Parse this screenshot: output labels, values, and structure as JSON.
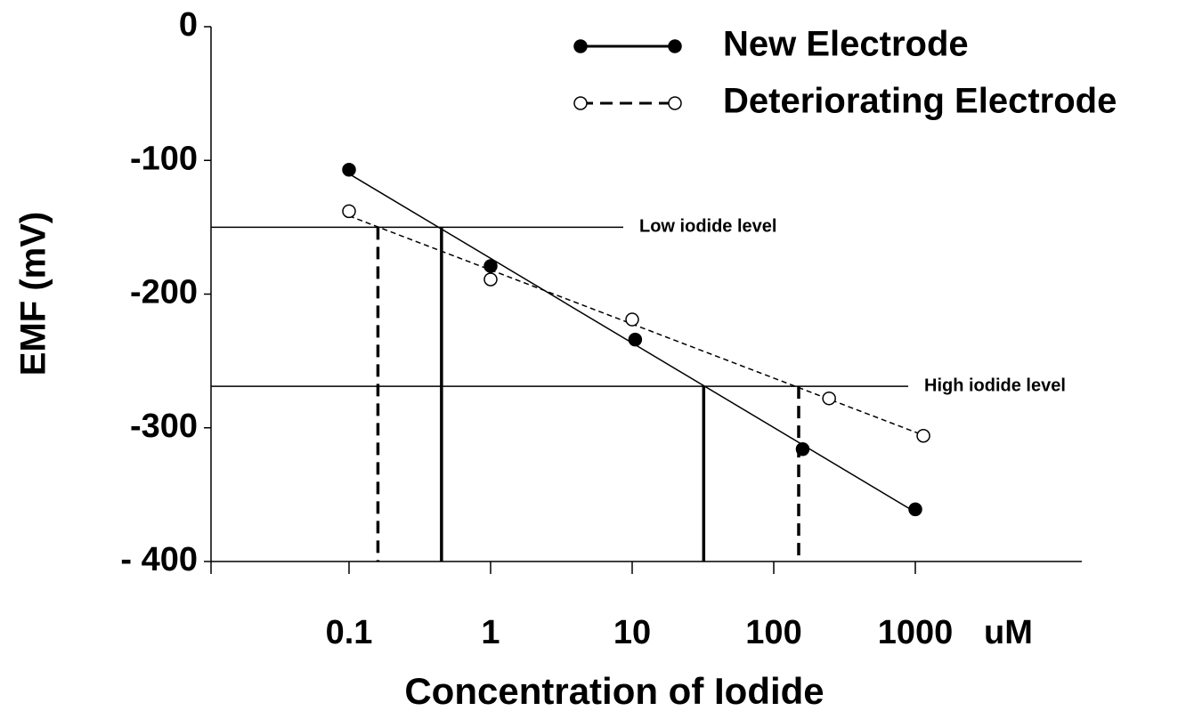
{
  "chart_data": {
    "type": "scatter",
    "xlabel": "Concentration of Iodide",
    "xunit": "uM",
    "ylabel": "EMF (mV)",
    "xscale": "log",
    "xlim": [
      0.01,
      15000
    ],
    "ylim": [
      -400,
      0
    ],
    "xticks": [
      0.1,
      1,
      10,
      100,
      1000
    ],
    "yticks": [
      0,
      -100,
      -200,
      -300,
      {
        "value": -400,
        "label": "- 400"
      }
    ],
    "legend": "upper right",
    "series": [
      {
        "name": "New Electrode",
        "color": "#000000",
        "marker": "filled",
        "line": "solid",
        "x": [
          0.1,
          1,
          10.5,
          160,
          1000
        ],
        "values": [
          -107,
          -179,
          -234,
          -316,
          -361
        ]
      },
      {
        "name": "Deteriorating Electrode",
        "color": "#000000",
        "marker": "open",
        "line": "dashed",
        "x": [
          0.1,
          1,
          10,
          246,
          1140
        ],
        "values": [
          -138,
          -189,
          -219,
          -278,
          -306
        ]
      }
    ],
    "reference_lines": [
      {
        "label": "Low iodide level",
        "value": -150,
        "crossings": [
          0.45,
          0.16
        ]
      },
      {
        "label": "High iodide level",
        "value": -269,
        "crossings": [
          32,
          150
        ]
      }
    ]
  }
}
